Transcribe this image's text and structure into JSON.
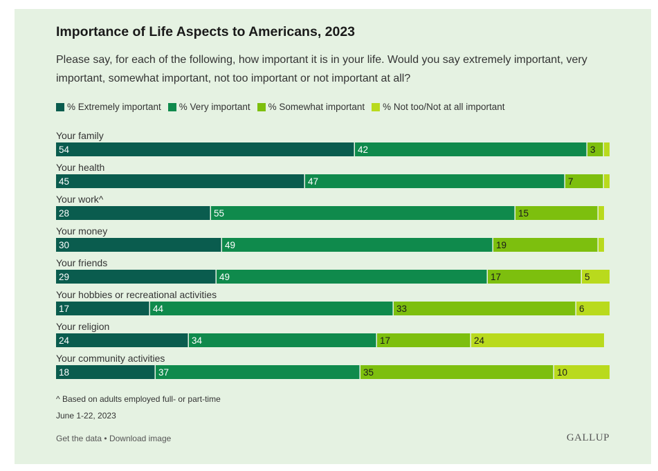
{
  "chart_data": {
    "type": "bar",
    "orientation": "horizontal",
    "stacked": true,
    "title": "Importance of Life Aspects to Americans, 2023",
    "subtitle": "Please say, for each of the following, how important it is in your life. Would you say extremely important, very important, somewhat important, not too important or not important at all?",
    "categories": [
      "Your family",
      "Your health",
      "Your work^",
      "Your money",
      "Your friends",
      "Your hobbies or recreational activities",
      "Your religion",
      "Your community activities"
    ],
    "series": [
      {
        "name": "% Extremely important",
        "color": "#0a5c4e",
        "label_color": "#ffffff",
        "values": [
          54,
          45,
          28,
          30,
          29,
          17,
          24,
          18
        ]
      },
      {
        "name": "% Very important",
        "color": "#0f8a4c",
        "label_color": "#ffffff",
        "values": [
          42,
          47,
          55,
          49,
          49,
          44,
          34,
          37
        ]
      },
      {
        "name": "% Somewhat important",
        "color": "#7dbf0e",
        "label_color": "#1a1a1a",
        "values": [
          3,
          7,
          15,
          19,
          17,
          33,
          17,
          35
        ]
      },
      {
        "name": "% Not too/Not at all important",
        "color": "#b9da1d",
        "label_color": "#1a1a1a",
        "values": [
          1,
          1,
          1,
          1,
          5,
          6,
          24,
          10
        ]
      }
    ],
    "labels_shown": [
      [
        true,
        true,
        true,
        false
      ],
      [
        true,
        true,
        true,
        false
      ],
      [
        true,
        true,
        true,
        false
      ],
      [
        true,
        true,
        true,
        false
      ],
      [
        true,
        true,
        true,
        true
      ],
      [
        true,
        true,
        true,
        true
      ],
      [
        true,
        true,
        true,
        true
      ],
      [
        true,
        true,
        true,
        true
      ]
    ],
    "xlim": [
      0,
      100
    ],
    "xlabel": "",
    "ylabel": "",
    "grid": false,
    "legend": "top"
  },
  "footnote": "^ Based on adults employed full- or part-time",
  "date": "June 1-22, 2023",
  "links": {
    "get_data": "Get the data",
    "separator": "•",
    "download": "Download image"
  },
  "brand": "GALLUP"
}
